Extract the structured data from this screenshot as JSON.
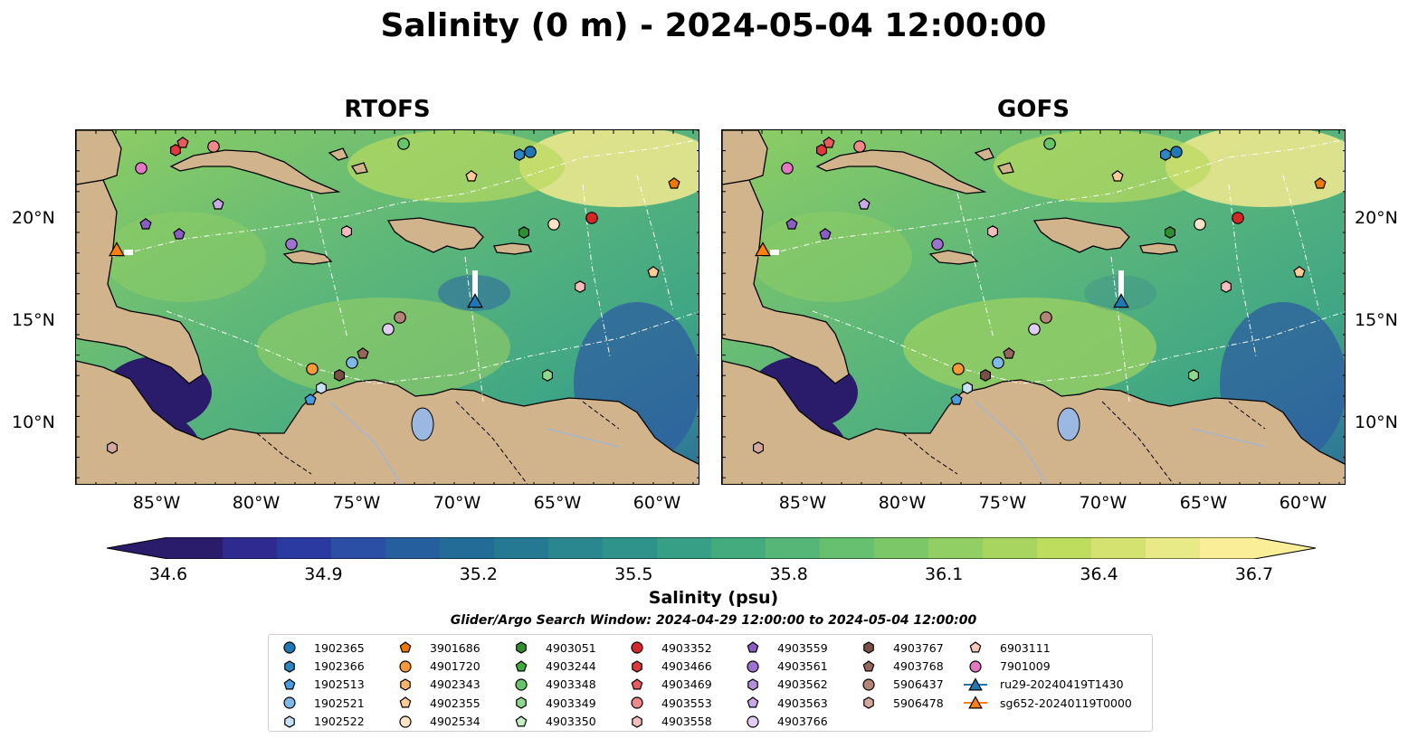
{
  "title": "Salinity (0 m) - 2024-05-04 12:00:00",
  "panels": [
    {
      "title": "RTOFS"
    },
    {
      "title": "GOFS"
    }
  ],
  "lat_labels": [
    "20°N",
    "15°N",
    "10°N"
  ],
  "lon_labels": [
    "85°W",
    "80°W",
    "75°W",
    "70°W",
    "65°W",
    "60°W"
  ],
  "colorbar": {
    "label": "Salinity (psu)",
    "min": 34.6,
    "max": 36.7,
    "ticks": [
      "34.6",
      "34.9",
      "35.2",
      "35.5",
      "35.8",
      "36.1",
      "36.4",
      "36.7"
    ],
    "colors": [
      "#2b1c6b",
      "#2e2a8f",
      "#2b3aa0",
      "#2a4fa5",
      "#265f9e",
      "#246c98",
      "#257993",
      "#2a8790",
      "#2f938b",
      "#379f86",
      "#44ab7f",
      "#55b678",
      "#67bf70",
      "#7cc869",
      "#91ce63",
      "#a7d55f",
      "#bedc5e",
      "#d4e270",
      "#e8e987",
      "#fbee98"
    ]
  },
  "search_window": "Glider/Argo Search Window: 2024-04-29 12:00:00 to 2024-05-04 12:00:00",
  "legend": {
    "columns": [
      [
        {
          "label": "1902365",
          "shape": "circle",
          "color": "#1f77b4"
        },
        {
          "label": "1902366",
          "shape": "hexagon",
          "color": "#2d86c4"
        },
        {
          "label": "1902513",
          "shape": "pentagon",
          "color": "#4a9be0"
        },
        {
          "label": "1902521",
          "shape": "circle",
          "color": "#80b8e8"
        },
        {
          "label": "1902522",
          "shape": "hexagon",
          "color": "#c8e0f4"
        }
      ],
      [
        {
          "label": "3901686",
          "shape": "pentagon",
          "color": "#f07800"
        },
        {
          "label": "4901720",
          "shape": "circle",
          "color": "#f89a3c"
        },
        {
          "label": "4902343",
          "shape": "hexagon",
          "color": "#fbb46c"
        },
        {
          "label": "4902355",
          "shape": "pentagon",
          "color": "#fccb96"
        },
        {
          "label": "4902534",
          "shape": "circle",
          "color": "#fde3c6"
        }
      ],
      [
        {
          "label": "4903051",
          "shape": "hexagon",
          "color": "#2f8f2f"
        },
        {
          "label": "4903244",
          "shape": "pentagon",
          "color": "#3faa3f"
        },
        {
          "label": "4903348",
          "shape": "circle",
          "color": "#68c468"
        },
        {
          "label": "4903349",
          "shape": "hexagon",
          "color": "#8ed88e"
        },
        {
          "label": "4903350",
          "shape": "pentagon",
          "color": "#c4efc4"
        }
      ],
      [
        {
          "label": "4903352",
          "shape": "circle",
          "color": "#d62728"
        },
        {
          "label": "4903466",
          "shape": "hexagon",
          "color": "#e0383d"
        },
        {
          "label": "4903469",
          "shape": "pentagon",
          "color": "#ea5a5e"
        },
        {
          "label": "4903553",
          "shape": "circle",
          "color": "#f08a8a"
        },
        {
          "label": "4903558",
          "shape": "hexagon",
          "color": "#f8bcbc"
        }
      ],
      [
        {
          "label": "4903559",
          "shape": "pentagon",
          "color": "#8a5cc4"
        },
        {
          "label": "4903561",
          "shape": "circle",
          "color": "#9e72d0"
        },
        {
          "label": "4903562",
          "shape": "hexagon",
          "color": "#b28edc"
        },
        {
          "label": "4903563",
          "shape": "pentagon",
          "color": "#c8aae8"
        },
        {
          "label": "4903766",
          "shape": "circle",
          "color": "#e0cdf4"
        }
      ],
      [
        {
          "label": "4903767",
          "shape": "hexagon",
          "color": "#7b5044"
        },
        {
          "label": "4903768",
          "shape": "pentagon",
          "color": "#966658"
        },
        {
          "label": "5906437",
          "shape": "circle",
          "color": "#b48478"
        },
        {
          "label": "5906478",
          "shape": "hexagon",
          "color": "#d4a89c"
        }
      ],
      [
        {
          "label": "6903111",
          "shape": "pentagon",
          "color": "#f8c8b8"
        },
        {
          "label": "7901009",
          "shape": "circle",
          "color": "#e377c2"
        },
        {
          "label": "ru29-20240419T1430",
          "shape": "triangle-line",
          "color": "#1f77b4"
        },
        {
          "label": "sg652-20240119T0000",
          "shape": "triangle-line",
          "color": "#ff7f0e"
        }
      ]
    ]
  }
}
